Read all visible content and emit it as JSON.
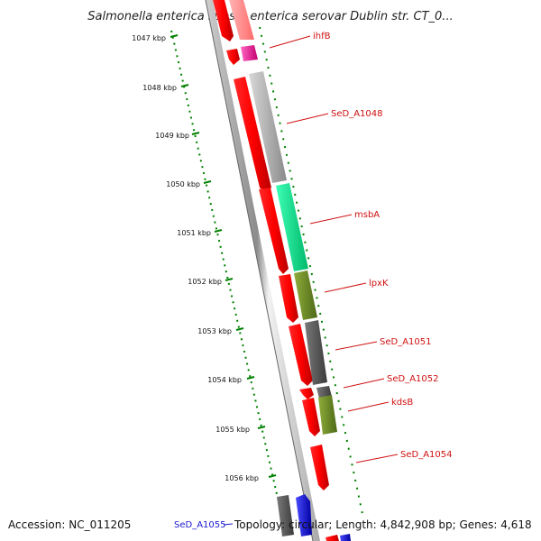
{
  "title": "Salmonella enterica subsp. enterica serovar Dublin str. CT_0...",
  "footer": {
    "accession": "Accession: NC_011205",
    "topology": "Topology: circular; Length: 4,842,908 bp; Genes: 4,618"
  },
  "scale_labels": [
    "1047 kbp",
    "1048 kbp",
    "1049 kbp",
    "1050 kbp",
    "1051 kbp",
    "1052 kbp",
    "1053 kbp",
    "1054 kbp",
    "1055 kbp",
    "1056 kbp"
  ],
  "gene_labels": [
    "ihfB",
    "SeD_A1048",
    "msbA",
    "lpxK",
    "SeD_A1051",
    "SeD_A1052",
    "kdsB",
    "SeD_A1054",
    "SeD_A1055"
  ],
  "colors": {
    "cds_forward": "#ff0000",
    "ihfB": "#ff1493",
    "SeD_A1048": "#c0c0c0",
    "msbA": "#00ff99",
    "lpxK": "#6b8e23",
    "SeD_A1051": "#555555",
    "SeD_A1052": "#555555",
    "kdsB": "#6b8e23",
    "SeD_A1055": "#0000ee",
    "label": "#d01010",
    "scale": "#008000"
  }
}
